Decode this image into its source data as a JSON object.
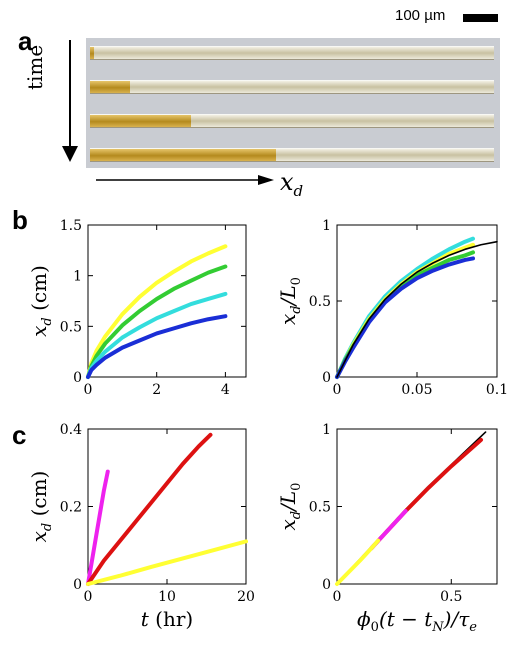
{
  "figure": {
    "panels": {
      "a": "a",
      "b": "b",
      "c": "c"
    },
    "scale_bar_text": "100 µm",
    "time_label": "time",
    "xd_label_main": "x",
    "xd_label_sub": "d",
    "microscopy": {
      "tube_count": 4,
      "fill_fractions": [
        0.01,
        0.1,
        0.25,
        0.46
      ],
      "fill_color": "#c49a2c"
    }
  },
  "chart_data": [
    {
      "id": "b-left",
      "type": "line",
      "xlim": [
        0,
        4.6
      ],
      "ylim": [
        0,
        1.5
      ],
      "xticks": [
        0,
        2,
        4
      ],
      "yticks": [
        0,
        0.5,
        1,
        1.5
      ],
      "xtick_labels": [
        "0",
        "2",
        "4"
      ],
      "ytick_labels": [
        "0",
        "0.5",
        "1",
        "1.5"
      ],
      "ylabel_main": "x",
      "ylabel_sub": "d",
      "ylabel_unit": " (cm)",
      "series": [
        {
          "color": "#ffff33",
          "x": [
            0,
            0.1,
            0.25,
            0.5,
            1,
            1.5,
            2,
            2.5,
            3,
            3.5,
            4
          ],
          "y": [
            0,
            0.14,
            0.26,
            0.4,
            0.62,
            0.79,
            0.93,
            1.04,
            1.14,
            1.22,
            1.29
          ]
        },
        {
          "color": "#33cc33",
          "x": [
            0,
            0.1,
            0.25,
            0.5,
            1,
            1.5,
            2,
            2.5,
            3,
            3.5,
            4
          ],
          "y": [
            0,
            0.11,
            0.21,
            0.33,
            0.51,
            0.65,
            0.77,
            0.87,
            0.95,
            1.03,
            1.09
          ]
        },
        {
          "color": "#33dddd",
          "x": [
            0,
            0.1,
            0.25,
            0.5,
            1,
            1.5,
            2,
            2.5,
            3,
            3.5,
            4
          ],
          "y": [
            0,
            0.09,
            0.16,
            0.25,
            0.39,
            0.49,
            0.58,
            0.65,
            0.72,
            0.77,
            0.82
          ]
        },
        {
          "color": "#1a2ed6",
          "x": [
            0,
            0.1,
            0.25,
            0.5,
            1,
            1.5,
            2,
            2.5,
            3,
            3.5,
            4
          ],
          "y": [
            0,
            0.07,
            0.12,
            0.19,
            0.29,
            0.36,
            0.43,
            0.48,
            0.53,
            0.57,
            0.6
          ]
        }
      ]
    },
    {
      "id": "b-right",
      "type": "line",
      "xlim": [
        0,
        0.1
      ],
      "ylim": [
        0,
        1
      ],
      "xticks": [
        0,
        0.05,
        0.1
      ],
      "yticks": [
        0,
        0.5,
        1
      ],
      "xtick_labels": [
        "0",
        "0.05",
        "0.1"
      ],
      "ytick_labels": [
        "0",
        "0.5",
        "1"
      ],
      "ylabel_main": "x",
      "ylabel_sub": "d",
      "ylabel_tail": "/L",
      "ylabel_sub2": "0",
      "series": [
        {
          "color": "#33dddd",
          "x": [
            0,
            0.005,
            0.01,
            0.02,
            0.03,
            0.04,
            0.05,
            0.06,
            0.07,
            0.08,
            0.085
          ],
          "y": [
            0,
            0.12,
            0.22,
            0.4,
            0.53,
            0.63,
            0.71,
            0.78,
            0.84,
            0.89,
            0.91
          ]
        },
        {
          "color": "#ffff33",
          "x": [
            0,
            0.005,
            0.01,
            0.02,
            0.03,
            0.04,
            0.05,
            0.06,
            0.07,
            0.08,
            0.085
          ],
          "y": [
            0,
            0.11,
            0.21,
            0.38,
            0.51,
            0.61,
            0.69,
            0.75,
            0.81,
            0.85,
            0.87
          ]
        },
        {
          "color": "#33cc33",
          "x": [
            0,
            0.005,
            0.01,
            0.02,
            0.03,
            0.04,
            0.05,
            0.06,
            0.07,
            0.08,
            0.085
          ],
          "y": [
            0,
            0.11,
            0.2,
            0.37,
            0.5,
            0.6,
            0.67,
            0.72,
            0.77,
            0.8,
            0.82
          ]
        },
        {
          "color": "#1a2ed6",
          "x": [
            0,
            0.005,
            0.01,
            0.02,
            0.03,
            0.04,
            0.05,
            0.06,
            0.07,
            0.08,
            0.085
          ],
          "y": [
            0,
            0.1,
            0.19,
            0.36,
            0.49,
            0.58,
            0.65,
            0.7,
            0.74,
            0.77,
            0.78
          ]
        },
        {
          "color": "#000000",
          "x": [
            0,
            0.01,
            0.02,
            0.03,
            0.04,
            0.05,
            0.06,
            0.07,
            0.08,
            0.09,
            0.1
          ],
          "y": [
            0,
            0.21,
            0.38,
            0.51,
            0.61,
            0.69,
            0.75,
            0.8,
            0.84,
            0.87,
            0.89
          ]
        }
      ]
    },
    {
      "id": "c-left",
      "type": "line",
      "xlim": [
        0,
        20
      ],
      "ylim": [
        0,
        0.4
      ],
      "xticks": [
        0,
        10,
        20
      ],
      "yticks": [
        0,
        0.2,
        0.4
      ],
      "xtick_labels": [
        "0",
        "10",
        "20"
      ],
      "ytick_labels": [
        "0",
        "0.2",
        "0.4"
      ],
      "ylabel_main": "x",
      "ylabel_sub": "d",
      "ylabel_unit": " (cm)",
      "xlabel_main": "t",
      "xlabel_unit": " (hr)",
      "series": [
        {
          "color": "#ee22ee",
          "x": [
            0,
            0.5,
            1,
            1.5,
            2,
            2.5
          ],
          "y": [
            0,
            0.06,
            0.12,
            0.18,
            0.24,
            0.29
          ]
        },
        {
          "color": "#dd1111",
          "x": [
            0,
            2,
            4,
            6,
            8,
            10,
            12,
            14,
            15.5
          ],
          "y": [
            0,
            0.06,
            0.11,
            0.16,
            0.21,
            0.26,
            0.31,
            0.355,
            0.385
          ]
        },
        {
          "color": "#ffff33",
          "x": [
            0,
            4,
            8,
            12,
            16,
            20
          ],
          "y": [
            0,
            0.021,
            0.044,
            0.066,
            0.088,
            0.11
          ]
        }
      ]
    },
    {
      "id": "c-right",
      "type": "line",
      "xlim": [
        0,
        0.7
      ],
      "ylim": [
        0,
        1
      ],
      "xticks": [
        0,
        0.5
      ],
      "yticks": [
        0,
        0.5,
        1
      ],
      "xtick_labels": [
        "0",
        "0.5"
      ],
      "ytick_labels": [
        "0",
        "0.5",
        "1"
      ],
      "ylabel_main": "x",
      "ylabel_sub": "d",
      "ylabel_tail": "/L",
      "ylabel_sub2": "0",
      "xlabel_phi": "ϕ",
      "xlabel_phi_sub": "0",
      "xlabel_mid": "(t − t",
      "xlabel_mid_sub": "N",
      "xlabel_tail": ")/τ",
      "xlabel_tail_sub": "e",
      "series": [
        {
          "color": "#000000",
          "x": [
            0,
            0.1,
            0.2,
            0.3,
            0.4,
            0.5,
            0.6,
            0.65
          ],
          "y": [
            0,
            0.16,
            0.32,
            0.48,
            0.63,
            0.77,
            0.91,
            0.98
          ]
        },
        {
          "color": "#dd1111",
          "x": [
            0.15,
            0.2,
            0.3,
            0.4,
            0.5,
            0.6,
            0.63
          ],
          "y": [
            0.23,
            0.31,
            0.47,
            0.62,
            0.76,
            0.89,
            0.93
          ]
        },
        {
          "color": "#ee22ee",
          "x": [
            0.15,
            0.2,
            0.25,
            0.3
          ],
          "y": [
            0.23,
            0.31,
            0.39,
            0.47
          ]
        },
        {
          "color": "#ffff33",
          "x": [
            0,
            0.05,
            0.1,
            0.15,
            0.18
          ],
          "y": [
            0,
            0.075,
            0.15,
            0.23,
            0.28
          ]
        }
      ]
    }
  ]
}
